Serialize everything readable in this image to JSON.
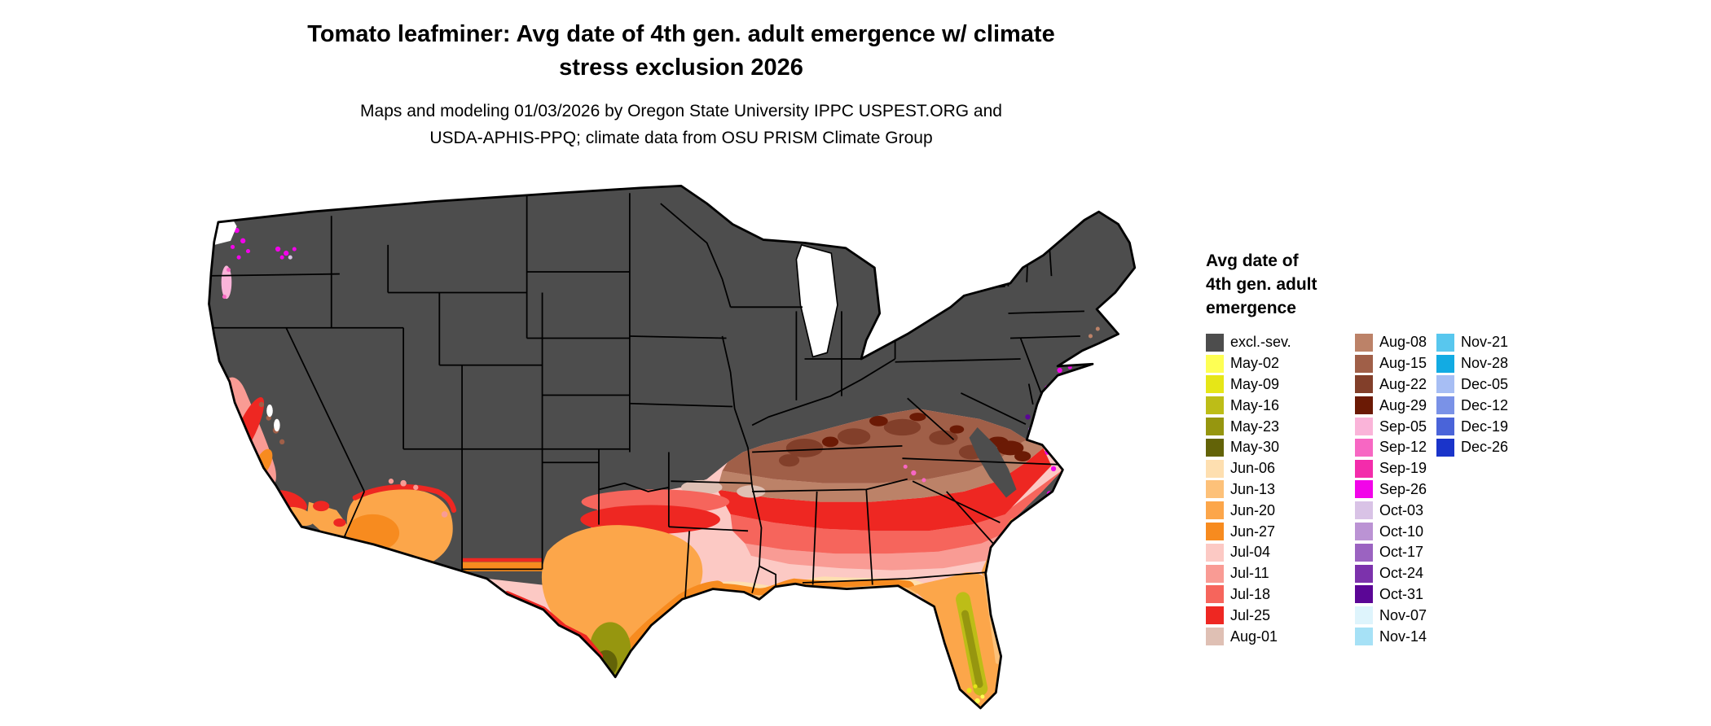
{
  "title": {
    "line1": "Tomato leafminer: Avg date of 4th gen. adult emergence w/ climate",
    "line2": "stress exclusion 2026"
  },
  "subtitle": {
    "line1": "Maps and modeling 01/03/2026 by Oregon State University IPPC USPEST.ORG and",
    "line2": "USDA-APHIS-PPQ; climate data from OSU PRISM Climate Group"
  },
  "legend": {
    "title_lines": [
      "Avg date of",
      "4th gen. adult",
      "emergence"
    ],
    "columns": [
      {
        "entries": [
          {
            "label": "excl.-sev.",
            "color": "#4d4d4d"
          },
          {
            "label": "May-02",
            "color": "#feff54"
          },
          {
            "label": "May-09",
            "color": "#e6e617"
          },
          {
            "label": "May-16",
            "color": "#bdbd17"
          },
          {
            "label": "May-23",
            "color": "#96960f"
          },
          {
            "label": "May-30",
            "color": "#636308"
          },
          {
            "label": "Jun-06",
            "color": "#fedfb0"
          },
          {
            "label": "Jun-13",
            "color": "#fdc179"
          },
          {
            "label": "Jun-20",
            "color": "#fca64a"
          },
          {
            "label": "Jun-27",
            "color": "#f78b1f"
          },
          {
            "label": "Jul-04",
            "color": "#fcc9c4"
          },
          {
            "label": "Jul-11",
            "color": "#f99b94"
          },
          {
            "label": "Jul-18",
            "color": "#f6655c"
          },
          {
            "label": "Jul-25",
            "color": "#ee2722"
          },
          {
            "label": "Aug-01",
            "color": "#dfc0b4"
          }
        ]
      },
      {
        "entries": [
          {
            "label": "Aug-08",
            "color": "#bc8268"
          },
          {
            "label": "Aug-15",
            "color": "#a05f48"
          },
          {
            "label": "Aug-22",
            "color": "#823f2a"
          },
          {
            "label": "Aug-29",
            "color": "#6b1a05"
          },
          {
            "label": "Sep-05",
            "color": "#fab4d9"
          },
          {
            "label": "Sep-12",
            "color": "#f767c3"
          },
          {
            "label": "Sep-19",
            "color": "#f32cab"
          },
          {
            "label": "Sep-26",
            "color": "#f204e9"
          },
          {
            "label": "Oct-03",
            "color": "#d9c3e6"
          },
          {
            "label": "Oct-10",
            "color": "#bb93d4"
          },
          {
            "label": "Oct-17",
            "color": "#9b63c1"
          },
          {
            "label": "Oct-24",
            "color": "#7c32ac"
          },
          {
            "label": "Oct-31",
            "color": "#5b0696"
          },
          {
            "label": "Nov-07",
            "color": "#def4fc"
          },
          {
            "label": "Nov-14",
            "color": "#a6e1f6"
          }
        ]
      },
      {
        "entries": [
          {
            "label": "Nov-21",
            "color": "#58c7ee"
          },
          {
            "label": "Nov-28",
            "color": "#12abe3"
          },
          {
            "label": "Dec-05",
            "color": "#a7bef4"
          },
          {
            "label": "Dec-12",
            "color": "#7a92e7"
          },
          {
            "label": "Dec-19",
            "color": "#4a64d9"
          },
          {
            "label": "Dec-26",
            "color": "#1a34ca"
          }
        ]
      }
    ]
  }
}
